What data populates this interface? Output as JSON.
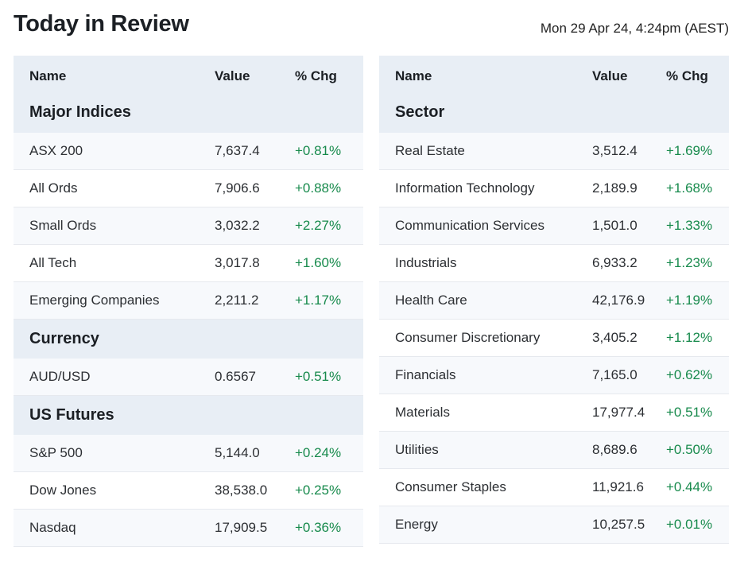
{
  "page": {
    "title": "Today in Review",
    "timestamp": "Mon 29 Apr 24, 4:24pm (AEST)"
  },
  "columns": {
    "name": "Name",
    "value": "Value",
    "change": "% Chg"
  },
  "colors": {
    "positive": "#178a4c",
    "header_bg": "#e8eef5"
  },
  "left": {
    "sections": [
      {
        "title": "Major Indices",
        "rows": [
          {
            "name": "ASX 200",
            "value": "7,637.4",
            "change": "+0.81%"
          },
          {
            "name": "All Ords",
            "value": "7,906.6",
            "change": "+0.88%"
          },
          {
            "name": "Small Ords",
            "value": "3,032.2",
            "change": "+2.27%"
          },
          {
            "name": "All Tech",
            "value": "3,017.8",
            "change": "+1.60%"
          },
          {
            "name": "Emerging Companies",
            "value": "2,211.2",
            "change": "+1.17%"
          }
        ]
      },
      {
        "title": "Currency",
        "rows": [
          {
            "name": "AUD/USD",
            "value": "0.6567",
            "change": "+0.51%"
          }
        ]
      },
      {
        "title": "US Futures",
        "rows": [
          {
            "name": "S&P 500",
            "value": "5,144.0",
            "change": "+0.24%"
          },
          {
            "name": "Dow Jones",
            "value": "38,538.0",
            "change": "+0.25%"
          },
          {
            "name": "Nasdaq",
            "value": "17,909.5",
            "change": "+0.36%"
          }
        ]
      }
    ]
  },
  "right": {
    "sections": [
      {
        "title": "Sector",
        "rows": [
          {
            "name": "Real Estate",
            "value": "3,512.4",
            "change": "+1.69%"
          },
          {
            "name": "Information Technology",
            "value": "2,189.9",
            "change": "+1.68%"
          },
          {
            "name": "Communication Services",
            "value": "1,501.0",
            "change": "+1.33%"
          },
          {
            "name": "Industrials",
            "value": "6,933.2",
            "change": "+1.23%"
          },
          {
            "name": "Health Care",
            "value": "42,176.9",
            "change": "+1.19%"
          },
          {
            "name": "Consumer Discretionary",
            "value": "3,405.2",
            "change": "+1.12%"
          },
          {
            "name": "Financials",
            "value": "7,165.0",
            "change": "+0.62%"
          },
          {
            "name": "Materials",
            "value": "17,977.4",
            "change": "+0.51%"
          },
          {
            "name": "Utilities",
            "value": "8,689.6",
            "change": "+0.50%"
          },
          {
            "name": "Consumer Staples",
            "value": "11,921.6",
            "change": "+0.44%"
          },
          {
            "name": "Energy",
            "value": "10,257.5",
            "change": "+0.01%"
          }
        ]
      }
    ]
  }
}
